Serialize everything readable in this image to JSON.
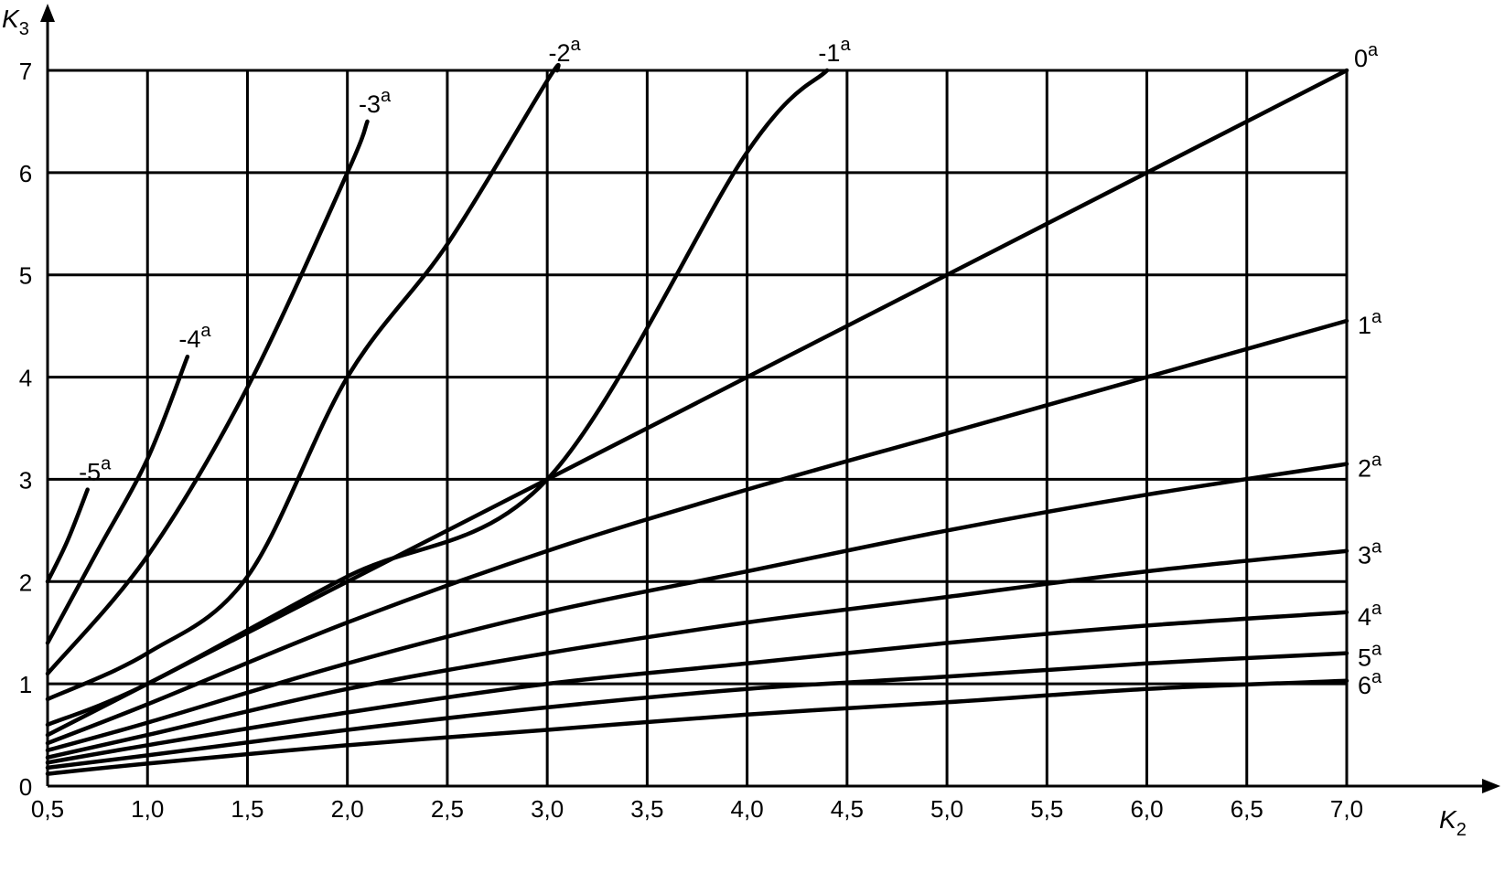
{
  "chart_data": {
    "type": "line",
    "xlabel": "K",
    "xlabel_sub": "2",
    "ylabel": "K",
    "ylabel_sub": "3",
    "xlim": [
      0.5,
      7.0
    ],
    "ylim": [
      0,
      7
    ],
    "grid": true,
    "x_ticks": [
      0.5,
      1.0,
      1.5,
      2.0,
      2.5,
      3.0,
      3.5,
      4.0,
      4.5,
      5.0,
      5.5,
      6.0,
      6.5,
      7.0
    ],
    "x_tick_labels": [
      "0,5",
      "1,0",
      "1,5",
      "2,0",
      "2,5",
      "3,0",
      "3,5",
      "4,0",
      "4,5",
      "5,0",
      "5,5",
      "6,0",
      "6,5",
      "7,0"
    ],
    "y_ticks": [
      0,
      1,
      2,
      3,
      4,
      5,
      6,
      7
    ],
    "y_tick_labels": [
      "0",
      "1",
      "2",
      "3",
      "4",
      "5",
      "6",
      "7"
    ],
    "series": [
      {
        "name": "-5",
        "sup": "a",
        "x": [
          0.5,
          0.6,
          0.7
        ],
        "y": [
          2.0,
          2.4,
          2.9
        ]
      },
      {
        "name": "-4",
        "sup": "a",
        "x": [
          0.5,
          0.75,
          1.0,
          1.2
        ],
        "y": [
          1.4,
          2.3,
          3.2,
          4.2
        ]
      },
      {
        "name": "-3",
        "sup": "a",
        "x": [
          0.5,
          1.0,
          1.5,
          2.0,
          2.1
        ],
        "y": [
          1.1,
          2.25,
          3.9,
          6.0,
          6.5
        ]
      },
      {
        "name": "-2",
        "sup": "a",
        "x": [
          0.5,
          1.0,
          1.5,
          2.0,
          2.5,
          3.0,
          3.05
        ],
        "y": [
          0.85,
          1.3,
          2.05,
          4.0,
          5.3,
          6.9,
          7.0
        ]
      },
      {
        "name": "-1",
        "sup": "a",
        "x": [
          0.5,
          1.0,
          2.0,
          3.0,
          4.0,
          4.4
        ],
        "y": [
          0.6,
          1.0,
          2.05,
          3.0,
          6.2,
          7.0
        ]
      },
      {
        "name": "0",
        "sup": "a",
        "x": [
          0.5,
          7.0
        ],
        "y": [
          0.5,
          7.0
        ]
      },
      {
        "name": "1",
        "sup": "a",
        "x": [
          0.5,
          1.0,
          2.0,
          3.0,
          4.0,
          5.0,
          6.0,
          7.0
        ],
        "y": [
          0.42,
          0.8,
          1.6,
          2.3,
          2.9,
          3.45,
          4.0,
          4.55
        ]
      },
      {
        "name": "2",
        "sup": "a",
        "x": [
          0.5,
          1.0,
          2.0,
          3.0,
          4.0,
          5.0,
          6.0,
          7.0
        ],
        "y": [
          0.35,
          0.62,
          1.2,
          1.7,
          2.1,
          2.5,
          2.85,
          3.15
        ]
      },
      {
        "name": "3",
        "sup": "a",
        "x": [
          0.5,
          1.0,
          2.0,
          3.0,
          4.0,
          5.0,
          6.0,
          7.0
        ],
        "y": [
          0.28,
          0.5,
          0.95,
          1.3,
          1.6,
          1.85,
          2.1,
          2.3
        ]
      },
      {
        "name": "4",
        "sup": "a",
        "x": [
          0.5,
          1.0,
          2.0,
          3.0,
          4.0,
          5.0,
          6.0,
          7.0
        ],
        "y": [
          0.23,
          0.4,
          0.72,
          1.0,
          1.2,
          1.4,
          1.57,
          1.7
        ]
      },
      {
        "name": "5",
        "sup": "a",
        "x": [
          0.5,
          1.0,
          2.0,
          3.0,
          4.0,
          5.0,
          6.0,
          7.0
        ],
        "y": [
          0.18,
          0.3,
          0.55,
          0.77,
          0.95,
          1.07,
          1.2,
          1.3
        ]
      },
      {
        "name": "6",
        "sup": "a",
        "x": [
          0.5,
          1.0,
          2.0,
          3.0,
          4.0,
          5.0,
          6.0,
          7.0
        ],
        "y": [
          0.12,
          0.22,
          0.4,
          0.55,
          0.7,
          0.82,
          0.95,
          1.03
        ]
      }
    ]
  }
}
